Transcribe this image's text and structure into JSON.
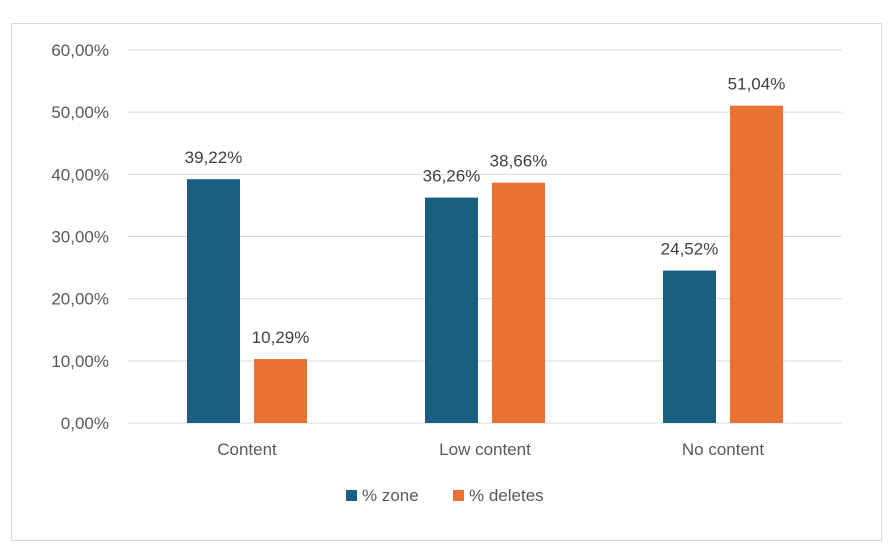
{
  "chart_data": {
    "type": "bar",
    "categories": [
      "Content",
      "Low content",
      "No content"
    ],
    "series": [
      {
        "name": "% zone",
        "values": [
          39.22,
          36.26,
          24.52
        ],
        "labels": [
          "39,22%",
          "36,26%",
          "24,52%"
        ],
        "color": "#1a5e80"
      },
      {
        "name": "% deletes",
        "values": [
          10.29,
          38.66,
          51.04
        ],
        "labels": [
          "10,29%",
          "38,66%",
          "51,04%"
        ],
        "color": "#e97132"
      }
    ],
    "ylim": [
      0,
      60
    ],
    "yticks": [
      0,
      10,
      20,
      30,
      40,
      50,
      60
    ],
    "ytick_labels": [
      "0,00%",
      "10,00%",
      "20,00%",
      "30,00%",
      "40,00%",
      "50,00%",
      "60,00%"
    ],
    "grid": true,
    "legend_position": "bottom"
  }
}
